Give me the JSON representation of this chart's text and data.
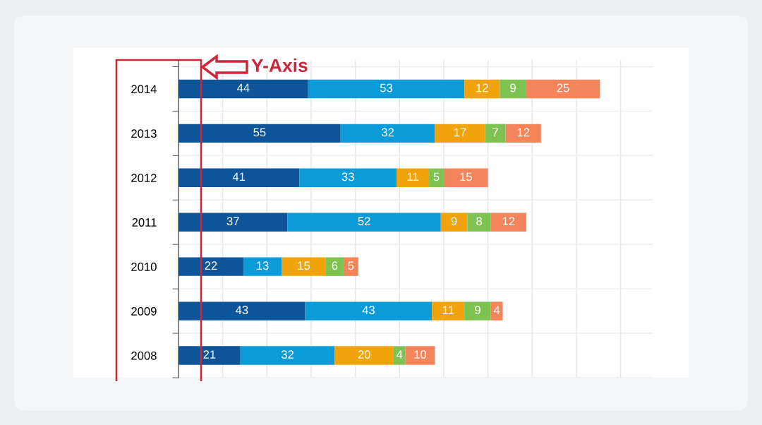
{
  "chart_data": {
    "type": "bar",
    "orientation": "horizontal",
    "stacked": true,
    "data_labels": true,
    "grid": true,
    "tick_labels": "y",
    "categories": [
      "2014",
      "2013",
      "2012",
      "2011",
      "2010",
      "2009",
      "2008"
    ],
    "series": [
      {
        "color": "#0d5499",
        "values": [
          44,
          55,
          41,
          37,
          22,
          43,
          21
        ]
      },
      {
        "color": "#0a9bd8",
        "values": [
          53,
          32,
          33,
          52,
          13,
          43,
          32
        ]
      },
      {
        "color": "#f0a30a",
        "values": [
          12,
          17,
          11,
          9,
          15,
          11,
          20
        ]
      },
      {
        "color": "#7ec252",
        "values": [
          9,
          7,
          5,
          8,
          6,
          9,
          4
        ]
      },
      {
        "color": "#f4845a",
        "values": [
          25,
          12,
          15,
          12,
          5,
          4,
          10
        ]
      }
    ],
    "annotations": [
      "Y-Axis"
    ]
  }
}
